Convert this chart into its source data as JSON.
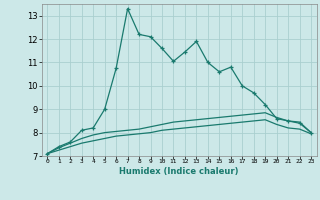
{
  "xlabel": "Humidex (Indice chaleur)",
  "x_values": [
    0,
    1,
    2,
    3,
    4,
    5,
    6,
    7,
    8,
    9,
    10,
    11,
    12,
    13,
    14,
    15,
    16,
    17,
    18,
    19,
    20,
    21,
    22,
    23
  ],
  "line1": [
    7.1,
    7.4,
    7.6,
    8.1,
    8.2,
    9.0,
    10.75,
    13.3,
    12.2,
    12.1,
    11.6,
    11.05,
    11.45,
    11.9,
    11.0,
    10.6,
    10.8,
    10.0,
    9.7,
    9.2,
    8.6,
    8.5,
    8.4,
    8.0
  ],
  "line2": [
    7.1,
    7.35,
    7.55,
    7.75,
    7.9,
    8.0,
    8.05,
    8.1,
    8.15,
    8.25,
    8.35,
    8.45,
    8.5,
    8.55,
    8.6,
    8.65,
    8.7,
    8.75,
    8.8,
    8.85,
    8.65,
    8.5,
    8.45,
    8.0
  ],
  "line3": [
    7.1,
    7.25,
    7.4,
    7.55,
    7.65,
    7.75,
    7.85,
    7.9,
    7.95,
    8.0,
    8.1,
    8.15,
    8.2,
    8.25,
    8.3,
    8.35,
    8.4,
    8.45,
    8.5,
    8.55,
    8.35,
    8.2,
    8.15,
    7.95
  ],
  "line_color": "#1a7a6e",
  "bg_color": "#cce8e8",
  "grid_color": "#aacfcf",
  "ylim": [
    7,
    13.5
  ],
  "xlim": [
    -0.5,
    23.5
  ],
  "yticks": [
    7,
    8,
    9,
    10,
    11,
    12,
    13
  ],
  "xtick_labels": [
    "0",
    "1",
    "2",
    "3",
    "4",
    "5",
    "6",
    "7",
    "8",
    "9",
    "10",
    "11",
    "12",
    "13",
    "14",
    "15",
    "16",
    "17",
    "18",
    "19",
    "20",
    "21",
    "22",
    "23"
  ]
}
